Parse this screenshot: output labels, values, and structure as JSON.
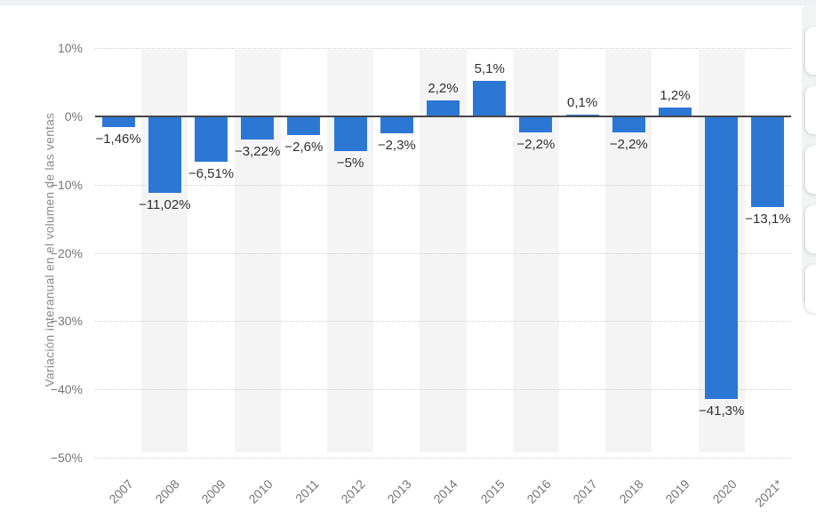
{
  "chart_data": {
    "type": "bar",
    "title": "",
    "ylabel": "Variación interanual en el volumen de las ventas",
    "xlabel": "",
    "categories": [
      "2007",
      "2008",
      "2009",
      "2010",
      "2011",
      "2012",
      "2013",
      "2014",
      "2015",
      "2016",
      "2017",
      "2018",
      "2019",
      "2020",
      "2021*"
    ],
    "values": [
      -1.46,
      -11.02,
      -6.51,
      -3.22,
      -2.6,
      -5,
      -2.3,
      2.2,
      5.1,
      -2.2,
      0.1,
      -2.2,
      1.2,
      -41.3,
      -13.1
    ],
    "value_labels": [
      "−1,46%",
      "−11,02%",
      "−6,51%",
      "−3,22%",
      "−2,6%",
      "−5%",
      "−2,3%",
      "2,2%",
      "5,1%",
      "−2,2%",
      "0,1%",
      "−2,2%",
      "1,2%",
      "−41,3%",
      "−13,1%"
    ],
    "ytick_labels": [
      "10%",
      "0%",
      "−10%",
      "−20%",
      "−30%",
      "−40%",
      "−50%"
    ],
    "ytick_values": [
      10,
      0,
      -10,
      -20,
      -30,
      -40,
      -50
    ],
    "ylim": [
      -50,
      10
    ],
    "grid": "dotted horizontal",
    "legend": "none",
    "striped_background_years": [
      "2008",
      "2010",
      "2012",
      "2014",
      "2016",
      "2018",
      "2020"
    ],
    "colors": {
      "bar": "#2d77d4",
      "zero_line": "#474747",
      "gridline": "#cfcfcf",
      "band": "#f4f4f4",
      "tick_text": "#767676",
      "value_text": "#303030"
    }
  },
  "side_toolbar": {
    "button_count": 5
  }
}
